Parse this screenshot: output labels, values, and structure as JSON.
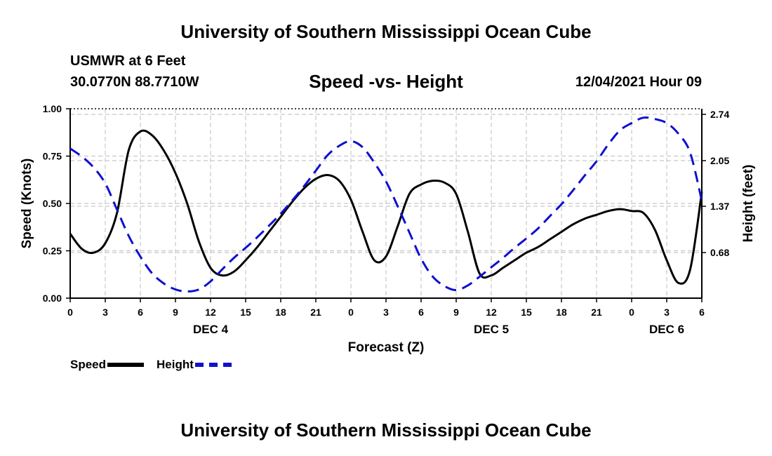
{
  "header": {
    "title": "University of Southern Mississippi Ocean Cube",
    "station": "USMWR at 6 Feet",
    "coordinates": "30.0770N  88.7710W",
    "chart_title": "Speed -vs- Height",
    "datetime": "12/04/2021 Hour 09"
  },
  "footer": {
    "title": "University of Southern Mississippi Ocean Cube"
  },
  "legend": {
    "speed_label": "Speed",
    "height_label": "Height"
  },
  "colors": {
    "speed": "#000000",
    "height": "#1010d0",
    "grid": "#c8c8c8"
  },
  "chart_data": {
    "type": "line",
    "title": "Speed -vs- Height",
    "xlabel": "Forecast (Z)",
    "ylabel": "Speed (Knots)",
    "y2label": "Height (feet)",
    "xlim": [
      0,
      54
    ],
    "ylim": [
      0,
      1
    ],
    "y2lim": [
      0,
      2.74
    ],
    "x_ticks": [
      0,
      3,
      6,
      9,
      12,
      15,
      18,
      21,
      24,
      27,
      30,
      33,
      36,
      39,
      42,
      45,
      48,
      51,
      54
    ],
    "x_tick_labels": [
      "0",
      "3",
      "6",
      "9",
      "12",
      "15",
      "18",
      "21",
      "0",
      "3",
      "6",
      "9",
      "12",
      "15",
      "18",
      "21",
      "0",
      "3",
      "6"
    ],
    "y_ticks": [
      0,
      0.25,
      0.5,
      0.75,
      1.0
    ],
    "y_tick_labels": [
      "0.00",
      "0.25",
      "0.50",
      "0.75",
      "1.00"
    ],
    "y2_ticks": [
      0.68,
      1.37,
      2.05,
      2.74
    ],
    "y2_tick_labels": [
      "0.68",
      "1.37",
      "2.05",
      "2.74"
    ],
    "day_labels": [
      {
        "x": 12,
        "label": "DEC 4"
      },
      {
        "x": 36,
        "label": "DEC 5"
      },
      {
        "x": 51,
        "label": "DEC 6"
      }
    ],
    "grid": true,
    "series": [
      {
        "name": "Speed",
        "axis": "left",
        "style": "solid",
        "x": [
          0,
          1,
          2,
          3,
          4,
          5,
          6,
          7,
          8,
          9,
          10,
          11,
          12,
          13,
          14,
          15,
          16,
          17,
          18,
          19,
          20,
          21,
          22,
          23,
          24,
          25,
          26,
          27,
          28,
          29,
          30,
          31,
          32,
          33,
          34,
          35,
          36,
          37,
          38,
          39,
          40,
          41,
          42,
          43,
          44,
          45,
          46,
          47,
          48,
          49,
          50,
          51,
          52,
          53,
          54
        ],
        "values": [
          0.34,
          0.26,
          0.24,
          0.29,
          0.45,
          0.78,
          0.88,
          0.86,
          0.78,
          0.66,
          0.5,
          0.3,
          0.16,
          0.12,
          0.14,
          0.2,
          0.27,
          0.35,
          0.43,
          0.51,
          0.58,
          0.63,
          0.65,
          0.62,
          0.52,
          0.35,
          0.2,
          0.22,
          0.38,
          0.55,
          0.6,
          0.62,
          0.61,
          0.55,
          0.35,
          0.13,
          0.12,
          0.16,
          0.2,
          0.24,
          0.27,
          0.31,
          0.35,
          0.39,
          0.42,
          0.44,
          0.46,
          0.47,
          0.46,
          0.45,
          0.36,
          0.2,
          0.08,
          0.15,
          0.56
        ]
      },
      {
        "name": "Height",
        "axis": "right",
        "style": "dashed",
        "x": [
          0,
          1,
          2,
          3,
          4,
          5,
          6,
          7,
          8,
          9,
          10,
          11,
          12,
          13,
          14,
          15,
          16,
          17,
          18,
          19,
          20,
          21,
          22,
          23,
          24,
          25,
          26,
          27,
          28,
          29,
          30,
          31,
          32,
          33,
          34,
          35,
          36,
          37,
          38,
          39,
          40,
          41,
          42,
          43,
          44,
          45,
          46,
          47,
          48,
          49,
          50,
          51,
          52,
          53,
          54
        ],
        "values": [
          2.23,
          2.11,
          1.95,
          1.71,
          1.32,
          0.93,
          0.62,
          0.37,
          0.22,
          0.13,
          0.1,
          0.13,
          0.25,
          0.43,
          0.6,
          0.75,
          0.91,
          1.08,
          1.26,
          1.46,
          1.67,
          1.9,
          2.13,
          2.27,
          2.34,
          2.25,
          2.02,
          1.74,
          1.37,
          0.98,
          0.59,
          0.32,
          0.18,
          0.12,
          0.19,
          0.32,
          0.46,
          0.6,
          0.75,
          0.89,
          1.04,
          1.22,
          1.4,
          1.61,
          1.83,
          2.04,
          2.29,
          2.5,
          2.61,
          2.69,
          2.67,
          2.61,
          2.45,
          2.17,
          1.45
        ]
      }
    ]
  }
}
